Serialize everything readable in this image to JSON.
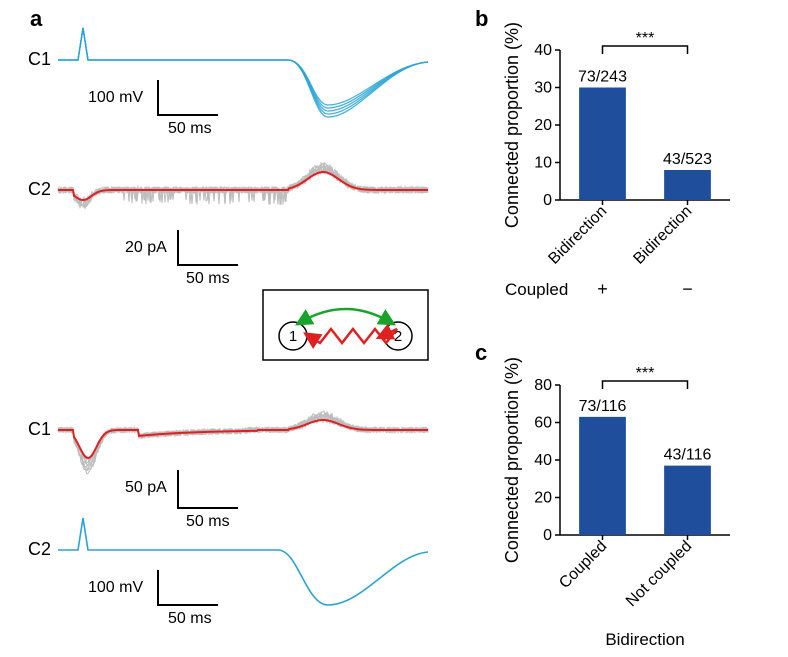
{
  "panels": {
    "a": {
      "label": "a"
    },
    "b": {
      "label": "b",
      "type": "bar",
      "ylabel": "Connected proportion (%)",
      "ylim": [
        0,
        40
      ],
      "ytick_step": 10,
      "categories": [
        "Bidirection",
        "Bidirection"
      ],
      "category_symbols": [
        "+",
        "−"
      ],
      "category_row_label": "Coupled",
      "values": [
        30,
        8
      ],
      "value_labels": [
        "73/243",
        "43/523"
      ],
      "bar_color": "#1f4e9c",
      "axis_color": "#000000",
      "sig_label": "***",
      "label_fontsize": 18,
      "bar_width": 0.55,
      "background_color": "#ffffff"
    },
    "c": {
      "label": "c",
      "type": "bar",
      "ylabel": "Connected proportion (%)",
      "ylim": [
        0,
        80
      ],
      "ytick_step": 20,
      "categories": [
        "Coupled",
        "Not coupled"
      ],
      "xlabel": "Bidirection",
      "values": [
        63,
        37
      ],
      "value_labels": [
        "73/116",
        "43/116"
      ],
      "bar_color": "#1f4e9c",
      "axis_color": "#000000",
      "sig_label": "***",
      "label_fontsize": 18,
      "bar_width": 0.55,
      "background_color": "#ffffff"
    }
  },
  "traces": {
    "c1_label": "C1",
    "c2_label": "C2",
    "voltage_color": "#29a3d6",
    "avg_color": "#e02020",
    "noise_color": "#bdbdbd",
    "axis_color": "#000000",
    "scalebars": {
      "top_v": {
        "v_label": "100 mV",
        "t_label": "50 ms"
      },
      "top_i": {
        "v_label": "20 pA",
        "t_label": "50 ms"
      },
      "bot_i": {
        "v_label": "50 pA",
        "t_label": "50 ms"
      },
      "bot_v": {
        "v_label": "100 mV",
        "t_label": "50 ms"
      }
    },
    "diagram": {
      "node1_label": "1",
      "node2_label": "2",
      "arrow_green": "#1aa32a",
      "arrow_red": "#e02020",
      "node_stroke": "#000000"
    }
  }
}
